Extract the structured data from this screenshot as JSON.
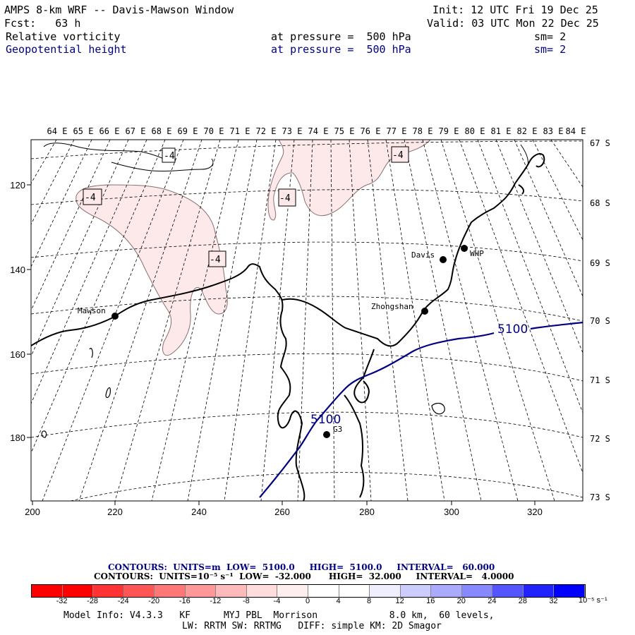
{
  "header": {
    "model_line": "AMPS 8-km WRF -- Davis-Mawson Window",
    "init_line": "Init: 12 UTC Fri 19 Dec 25",
    "fcst_line": "Fcst:   63 h",
    "valid_line": "Valid: 03 UTC Mon 22 Dec 25",
    "field1": {
      "name": "Relative vorticity",
      "pressure": "at pressure =  500 hPa",
      "sm": "sm= 2"
    },
    "field2": {
      "name": "Geopotential height",
      "pressure": "at pressure =  500 hPa",
      "sm": "sm= 2"
    }
  },
  "map": {
    "top_lon_labels": [
      "64 E",
      "65 E",
      "66 E",
      "67 E",
      "68 E",
      "69 E",
      "70 E",
      "71 E",
      "72 E",
      "73 E",
      "74 E",
      "75 E",
      "76 E",
      "77 E",
      "78 E",
      "79 E",
      "80 E",
      "81 E",
      "82 E",
      "83 E",
      "84 E"
    ],
    "right_lat_labels": [
      "67 S",
      "68 S",
      "69 S",
      "70 S",
      "71 S",
      "72 S",
      "73 S"
    ],
    "left_axis_labels": [
      "120",
      "140",
      "160",
      "180"
    ],
    "bottom_axis_labels": [
      "200",
      "220",
      "240",
      "260",
      "280",
      "300",
      "320"
    ],
    "stations": [
      {
        "name": "Mawson"
      },
      {
        "name": "Davis"
      },
      {
        "name": "WHP"
      },
      {
        "name": "Zhongshan"
      },
      {
        "name": "G3"
      }
    ],
    "vorticity_labels": [
      "-4",
      "-4",
      "-4",
      "-4",
      "-4"
    ],
    "height_labels": [
      "5100",
      "5100"
    ],
    "colors": {
      "height_contour": "#000080",
      "negative_fill": "#fde9e9",
      "coast": "#000000"
    }
  },
  "footer": {
    "contours1": "CONTOURS:  UNITS=m  LOW=  5100.0     HIGH=  5100.0     INTERVAL=   60.000",
    "contours2": "CONTOURS:  UNITS=10⁻⁵ s⁻¹  LOW=  -32.000      HIGH=  32.000     INTERVAL=   4.0000",
    "colorbar_labels": [
      "-32",
      "-28",
      "-24",
      "-20",
      "-16",
      "-12",
      "-8",
      "-4",
      "0",
      "4",
      "8",
      "12",
      "16",
      "20",
      "24",
      "28",
      "32"
    ],
    "colorbar_unit": "10⁻⁵ s⁻¹",
    "colorbar_colors": [
      "#ff0000",
      "#ff3333",
      "#ff5555",
      "#ff7777",
      "#ff9999",
      "#ffbbbb",
      "#ffdddd",
      "#ffeeee",
      "#ffffff",
      "#ffffff",
      "#eeeeff",
      "#ccccff",
      "#aaaaff",
      "#8888ff",
      "#5555ff",
      "#2222ff",
      "#0000ff"
    ],
    "model_info": "Model Info: V4.3.3   KF      MYJ PBL  Morrison             8.0 km,  60 levels,",
    "model_info2": "LW: RRTM SW: RRTMG   DIFF: simple KM: 2D Smagor"
  }
}
